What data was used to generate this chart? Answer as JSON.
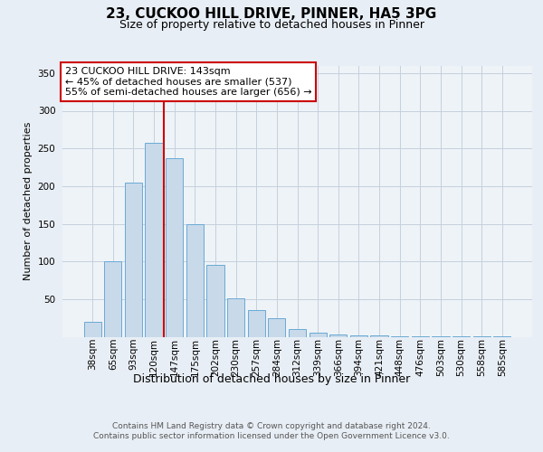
{
  "title_line1": "23, CUCKOO HILL DRIVE, PINNER, HA5 3PG",
  "title_line2": "Size of property relative to detached houses in Pinner",
  "xlabel": "Distribution of detached houses by size in Pinner",
  "ylabel": "Number of detached properties",
  "categories": [
    "38sqm",
    "65sqm",
    "93sqm",
    "120sqm",
    "147sqm",
    "175sqm",
    "202sqm",
    "230sqm",
    "257sqm",
    "284sqm",
    "312sqm",
    "339sqm",
    "366sqm",
    "394sqm",
    "421sqm",
    "448sqm",
    "476sqm",
    "503sqm",
    "530sqm",
    "558sqm",
    "585sqm"
  ],
  "values": [
    20,
    100,
    205,
    258,
    237,
    149,
    96,
    51,
    35,
    25,
    10,
    6,
    3,
    2,
    2,
    1,
    1,
    1,
    1,
    1,
    1
  ],
  "bar_color": "#c8d9ea",
  "bar_edge_color": "#6aaad4",
  "vline_x": 3.5,
  "vline_color": "#cc0000",
  "annotation_line1": "23 CUCKOO HILL DRIVE: 143sqm",
  "annotation_line2": "← 45% of detached houses are smaller (537)",
  "annotation_line3": "55% of semi-detached houses are larger (656) →",
  "annotation_box_color": "#ffffff",
  "annotation_box_edge": "#cc0000",
  "ylim": [
    0,
    360
  ],
  "yticks": [
    50,
    100,
    150,
    200,
    250,
    300,
    350
  ],
  "footer_text": "Contains HM Land Registry data © Crown copyright and database right 2024.\nContains public sector information licensed under the Open Government Licence v3.0.",
  "bg_color": "#e8eef5",
  "plot_bg_color": "#eef3f8",
  "grid_color": "#c5d0dc",
  "title1_fontsize": 11,
  "title2_fontsize": 9,
  "ylabel_fontsize": 8,
  "xlabel_fontsize": 9,
  "tick_fontsize": 7.5,
  "footer_fontsize": 6.5,
  "annot_fontsize": 8
}
